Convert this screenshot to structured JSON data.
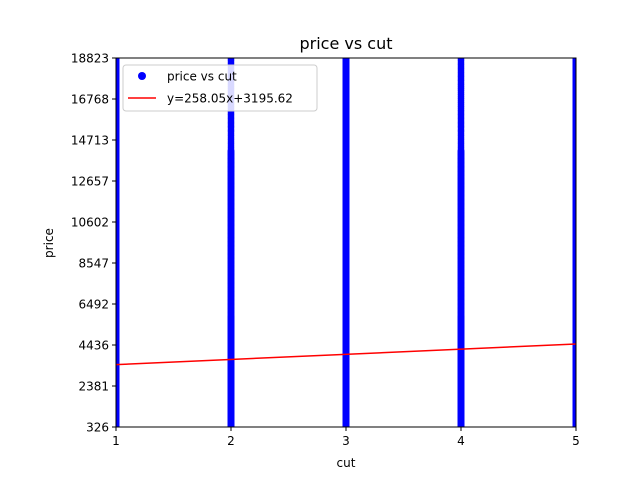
{
  "chart_data": {
    "type": "scatter",
    "title": "price vs cut",
    "xlabel": "cut",
    "ylabel": "price",
    "xlim": [
      1,
      5
    ],
    "ylim": [
      326,
      18823
    ],
    "xticks": [
      "1",
      "2",
      "3",
      "4",
      "5"
    ],
    "yticks": [
      "326",
      "2381",
      "4436",
      "6492",
      "8547",
      "10602",
      "12657",
      "14713",
      "16768",
      "18823"
    ],
    "grid": false,
    "legend_position": "top-left",
    "series": [
      {
        "name": "price vs cut",
        "kind": "scatter",
        "color": "#0000ff",
        "columns": [
          {
            "x": 1,
            "y_min": 326,
            "y_max": 18823,
            "density": "dense"
          },
          {
            "x": 2,
            "y_min": 326,
            "y_max": 18823,
            "density": "dense-bottom"
          },
          {
            "x": 3,
            "y_min": 326,
            "y_max": 18823,
            "density": "dense"
          },
          {
            "x": 4,
            "y_min": 326,
            "y_max": 18823,
            "density": "dense-bottom"
          },
          {
            "x": 5,
            "y_min": 326,
            "y_max": 18823,
            "density": "dense"
          }
        ]
      },
      {
        "name": "y=258.05x+3195.62",
        "kind": "line",
        "color": "#ff0000",
        "slope": 258.05,
        "intercept": 3195.62,
        "x": [
          1,
          5
        ]
      }
    ]
  }
}
